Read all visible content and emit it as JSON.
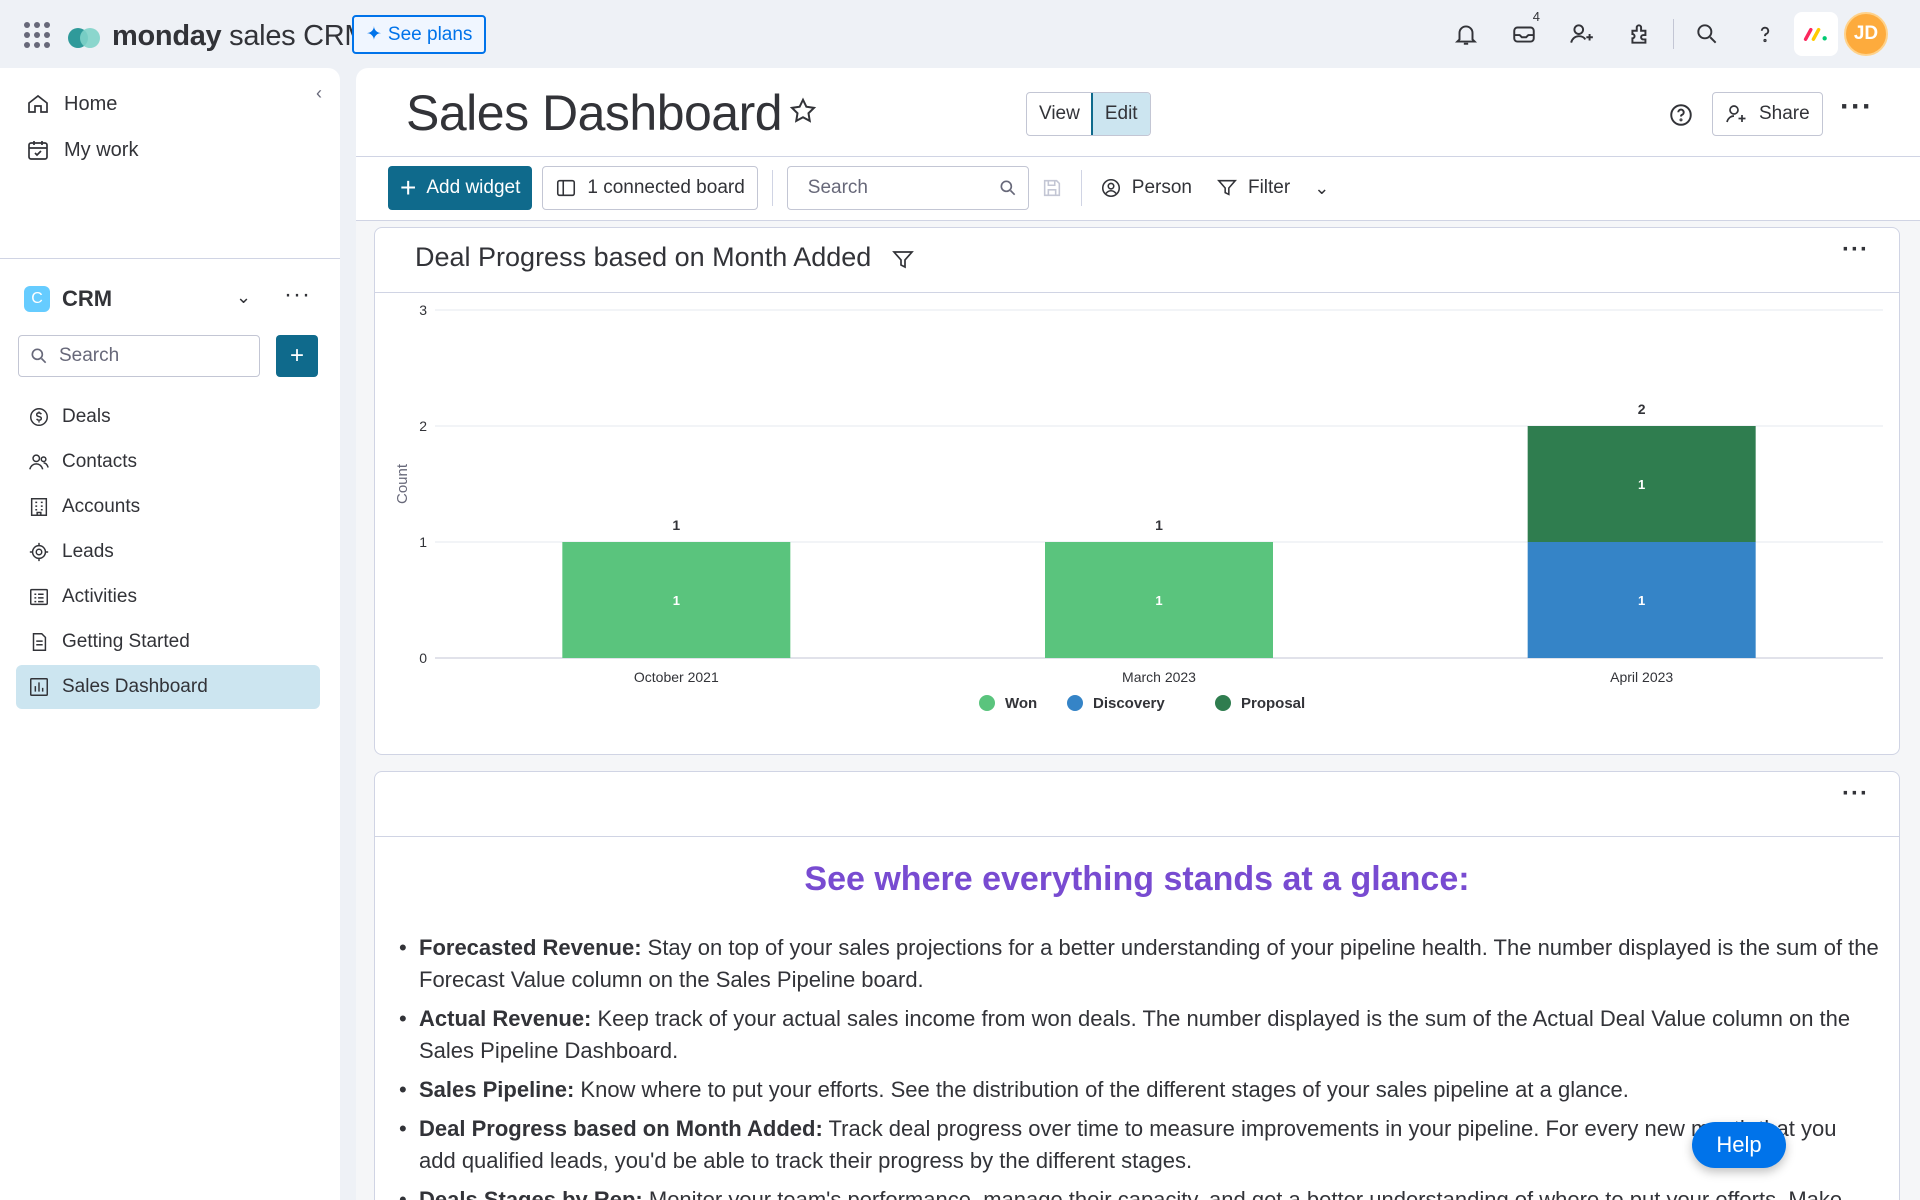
{
  "topbar": {
    "brand_bold": "monday",
    "brand_rest": " sales CRM",
    "see_plans": "See plans",
    "inbox_badge": "4",
    "avatar_initials": "JD",
    "icons": [
      "apps-grid-icon",
      "bell-icon",
      "inbox-icon",
      "invite-icon",
      "integrations-icon",
      "search-icon",
      "help-icon",
      "monday-apps-icon"
    ]
  },
  "sidebar": {
    "home": "Home",
    "my_work": "My work",
    "workspace_letter": "C",
    "workspace_name": "CRM",
    "search_placeholder": "Search",
    "items": [
      {
        "label": "Deals",
        "icon": "deals-icon"
      },
      {
        "label": "Contacts",
        "icon": "contacts-icon"
      },
      {
        "label": "Accounts",
        "icon": "accounts-icon"
      },
      {
        "label": "Leads",
        "icon": "leads-icon"
      },
      {
        "label": "Activities",
        "icon": "activities-icon"
      },
      {
        "label": "Getting Started",
        "icon": "document-icon"
      },
      {
        "label": "Sales Dashboard",
        "icon": "dashboard-icon",
        "active": true
      }
    ]
  },
  "main": {
    "title": "Sales Dashboard",
    "view_label": "View",
    "edit_label": "Edit",
    "share_label": "Share",
    "toolbar": {
      "add_widget": "Add widget",
      "connected_board": "1 connected board",
      "search_placeholder": "Search",
      "person": "Person",
      "filter": "Filter"
    }
  },
  "widget_chart": {
    "title": "Deal Progress based on Month Added"
  },
  "chart_data": {
    "type": "bar",
    "stacked": true,
    "title": "Deal Progress based on Month Added",
    "xlabel": "",
    "ylabel": "Count",
    "ylim": [
      0,
      3
    ],
    "yticks": [
      0,
      1,
      2,
      3
    ],
    "grid": true,
    "legend_position": "bottom",
    "categories": [
      "October 2021",
      "March 2023",
      "April 2023"
    ],
    "totals": [
      1,
      1,
      2
    ],
    "series": [
      {
        "name": "Won",
        "color": "#5ac47d",
        "values": [
          1,
          1,
          0
        ]
      },
      {
        "name": "Discovery",
        "color": "#3584c7",
        "values": [
          0,
          0,
          1
        ]
      },
      {
        "name": "Proposal",
        "color": "#2f7d4f",
        "values": [
          0,
          0,
          1
        ]
      }
    ]
  },
  "widget_text": {
    "heading": "See where everything stands at a glance:",
    "bullets": [
      {
        "bold": "Forecasted Revenue:",
        "text": " Stay on top of your sales projections for a better understanding of your pipeline health. The number displayed is the sum of the Forecast Value column on the Sales Pipeline board."
      },
      {
        "bold": "Actual Revenue:",
        "text": " Keep track of your actual sales income from won deals. The number displayed is the sum of the Actual Deal Value column on the Sales Pipeline Dashboard."
      },
      {
        "bold": "Sales Pipeline:",
        "text": " Know where to put your efforts. See the distribution of the different stages of your sales pipeline at a glance."
      },
      {
        "bold": "Deal Progress based on Month Added:",
        "text": " Track deal progress over time to measure improvements in your pipeline. For every new month that you add qualified leads, you'd be able to track their progress by the different stages."
      },
      {
        "bold": "Deals Stages by Rep:",
        "text": " Monitor your team's performance, manage their capacity, and get a better understanding of where to put your efforts. Make sure"
      }
    ]
  },
  "help_button": "Help"
}
